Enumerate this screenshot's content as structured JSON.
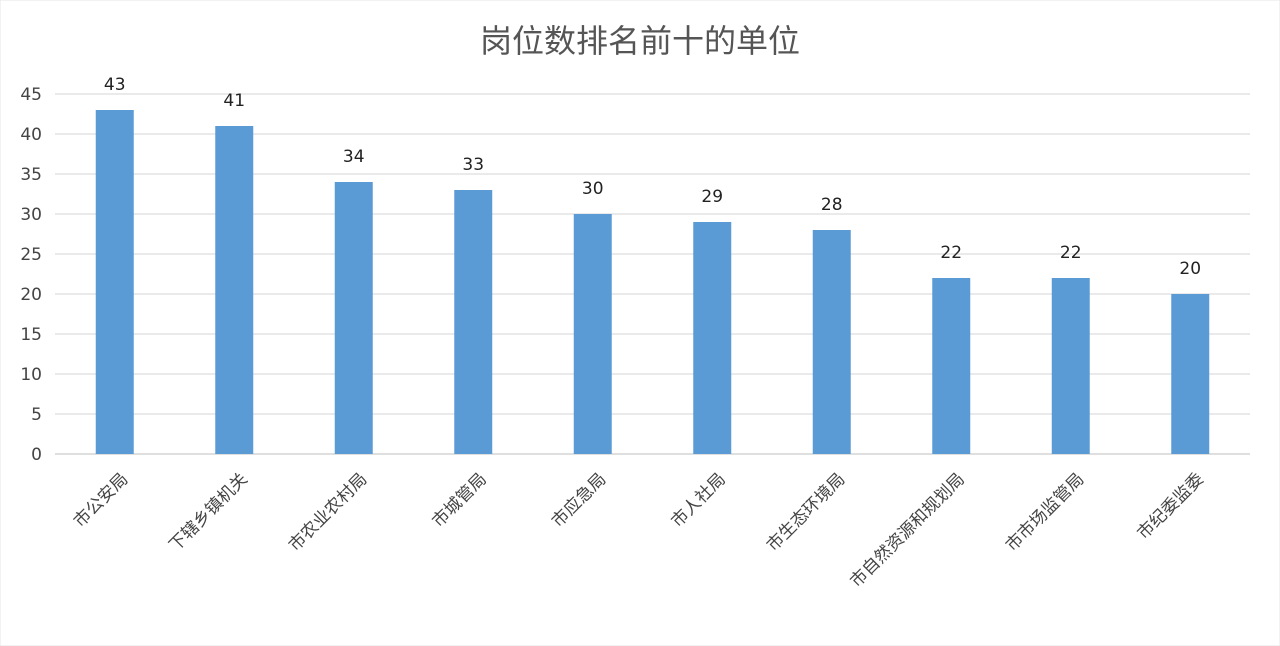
{
  "chart_data": {
    "type": "bar",
    "title": "岗位数排名前十的单位",
    "xlabel": "",
    "ylabel": "",
    "ylim": [
      0,
      45
    ],
    "yticks": [
      0,
      5,
      10,
      15,
      20,
      25,
      30,
      35,
      40,
      45
    ],
    "grid": true,
    "legend": "none",
    "bar_color": "#5b9bd5",
    "categories": [
      "市公安局",
      "下辖乡镇机关",
      "市农业农村局",
      "市城管局",
      "市应急局",
      "市人社局",
      "市生态环境局",
      "市自然资源和规划局",
      "市市场监管局",
      "市纪委监委"
    ],
    "values": [
      43,
      41,
      34,
      33,
      30,
      29,
      28,
      22,
      22,
      20
    ]
  }
}
